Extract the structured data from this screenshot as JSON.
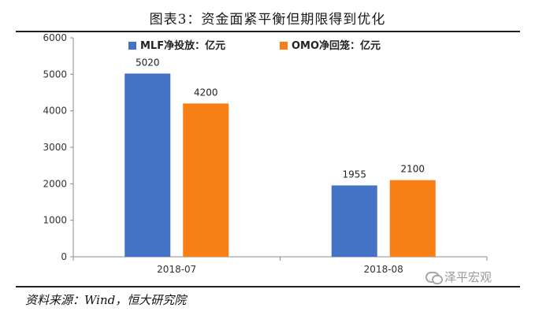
{
  "chart_data": {
    "type": "bar",
    "title": "图表3：资金面紧平衡但期限得到优化",
    "categories": [
      "2018-07",
      "2018-08"
    ],
    "series": [
      {
        "name": "MLF净投放：亿元",
        "values": [
          5020,
          1955
        ],
        "color": "#4472C4"
      },
      {
        "name": "OMO净回笼：亿元",
        "values": [
          4200,
          2100
        ],
        "color": "#F77F16"
      }
    ],
    "ylim": [
      0,
      6000
    ],
    "yticks": [
      0,
      1000,
      2000,
      3000,
      4000,
      5000,
      6000
    ],
    "grid": false,
    "legend_position": "top-center",
    "data_labels": true
  },
  "source": "资料来源：Wind，恒大研究院",
  "watermark": "泽平宏观"
}
